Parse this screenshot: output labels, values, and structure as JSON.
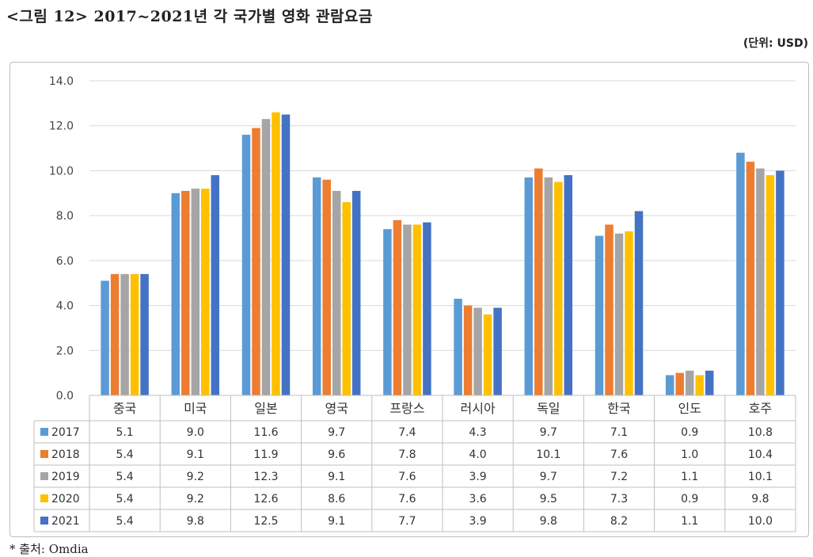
{
  "figure_title": "<그림 12> 2017~2021년 각 국가별 영화 관람요금",
  "unit": "(단위: USD)",
  "source": "* 출처: Omdia",
  "chart_data": {
    "type": "bar",
    "categories": [
      "중국",
      "미국",
      "일본",
      "영국",
      "프랑스",
      "러시아",
      "독일",
      "한국",
      "인도",
      "호주"
    ],
    "series": [
      {
        "name": "2017",
        "color": "#5b9bd5",
        "values": [
          5.1,
          9.0,
          11.6,
          9.7,
          7.4,
          4.3,
          9.7,
          7.1,
          0.9,
          10.8
        ]
      },
      {
        "name": "2018",
        "color": "#ed7d31",
        "values": [
          5.4,
          9.1,
          11.9,
          9.6,
          7.8,
          4.0,
          10.1,
          7.6,
          1.0,
          10.4
        ]
      },
      {
        "name": "2019",
        "color": "#a5a5a5",
        "values": [
          5.4,
          9.2,
          12.3,
          9.1,
          7.6,
          3.9,
          9.7,
          7.2,
          1.1,
          10.1
        ]
      },
      {
        "name": "2020",
        "color": "#ffc000",
        "values": [
          5.4,
          9.2,
          12.6,
          8.6,
          7.6,
          3.6,
          9.5,
          7.3,
          0.9,
          9.8
        ]
      },
      {
        "name": "2021",
        "color": "#4472c4",
        "values": [
          5.4,
          9.8,
          12.5,
          9.1,
          7.7,
          3.9,
          9.8,
          8.2,
          1.1,
          10.0
        ]
      }
    ],
    "y_ticks": [
      "0.0",
      "2.0",
      "4.0",
      "6.0",
      "8.0",
      "10.0",
      "12.0",
      "14.0"
    ],
    "ylim": [
      0,
      14
    ],
    "grid": true,
    "legend": "data-table"
  }
}
